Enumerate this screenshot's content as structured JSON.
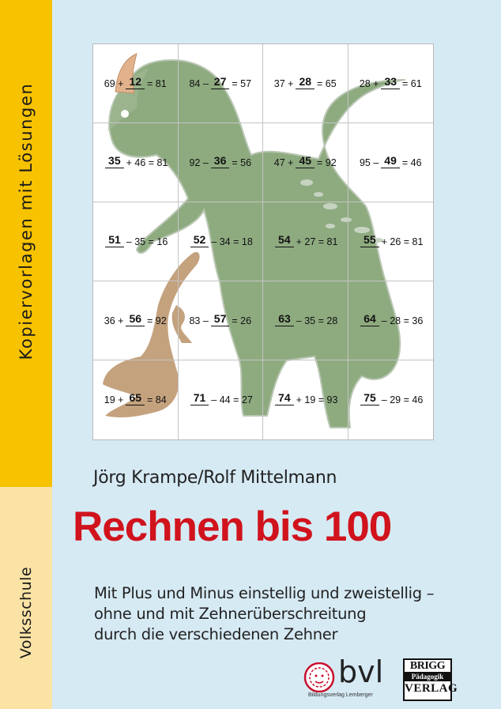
{
  "sidebar": {
    "top_text": "Kopiervorlagen mit Lösungen",
    "bottom_text": "Volksschule",
    "top_color": "#f7c200",
    "bottom_color": "#fbe3a6"
  },
  "puzzle": {
    "cells": [
      {
        "before": "69 +",
        "answer": "12",
        "after": "= 81"
      },
      {
        "before": "84 –",
        "answer": "27",
        "after": "= 57"
      },
      {
        "before": "37 +",
        "answer": "28",
        "after": "= 65"
      },
      {
        "before": "28 +",
        "answer": "33",
        "after": "= 61"
      },
      {
        "before": "",
        "answer": "35",
        "after": "+ 46 = 81"
      },
      {
        "before": "92 –",
        "answer": "36",
        "after": "= 56"
      },
      {
        "before": "47 +",
        "answer": "45",
        "after": "= 92"
      },
      {
        "before": "95 –",
        "answer": "49",
        "after": "= 46"
      },
      {
        "before": "",
        "answer": "51",
        "after": "– 35 = 16"
      },
      {
        "before": "",
        "answer": "52",
        "after": "– 34 = 18"
      },
      {
        "before": "",
        "answer": "54",
        "after": "+ 27 = 81"
      },
      {
        "before": "",
        "answer": "55",
        "after": "+ 26 = 81"
      },
      {
        "before": "36 +",
        "answer": "56",
        "after": "= 92"
      },
      {
        "before": "83 –",
        "answer": "57",
        "after": "= 26"
      },
      {
        "before": "",
        "answer": "63",
        "after": "– 35 = 28"
      },
      {
        "before": "",
        "answer": "64",
        "after": "– 28 = 36"
      },
      {
        "before": "19 +",
        "answer": "65",
        "after": "= 84"
      },
      {
        "before": "",
        "answer": "71",
        "after": "– 44 = 27"
      },
      {
        "before": "",
        "answer": "74",
        "after": "+ 19 = 93"
      },
      {
        "before": "",
        "answer": "75",
        "after": "– 29 = 46"
      }
    ]
  },
  "authors": "Jörg Krampe/Rolf Mittelmann",
  "title": "Rechnen bis 100",
  "title_color": "#d0131d",
  "subtitle": {
    "line1": "Mit Plus und Minus einstellig und zweistellig –",
    "line2": "ohne und mit Zehnerüberschreitung",
    "line3": "durch die verschiedenen Zehner"
  },
  "publisher_bvl": {
    "logo_text": "bvl",
    "subtext": "Bildungsverlag Lemberger"
  },
  "publisher_brigg": {
    "line1": "BRIGG",
    "line2": "Pädagogik",
    "line3": "VERLAG"
  }
}
